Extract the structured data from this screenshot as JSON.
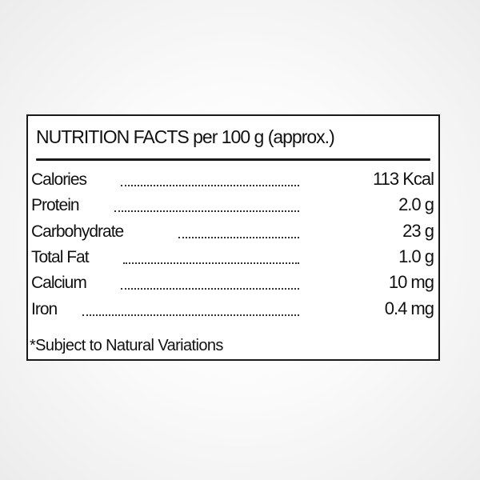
{
  "label": {
    "title": "NUTRITION FACTS per 100 g (approx.)",
    "rows": [
      {
        "name": "Calories",
        "value": "113 Kcal"
      },
      {
        "name": "Protein",
        "value": "2.0 g"
      },
      {
        "name": "Carbohydrate",
        "value": "23 g"
      },
      {
        "name": "Total Fat",
        "value": "1.0 g"
      },
      {
        "name": "Calcium",
        "value": "10 mg"
      },
      {
        "name": "Iron",
        "value": "0.4 mg"
      }
    ],
    "footnote": "*Subject to Natural Variations"
  }
}
